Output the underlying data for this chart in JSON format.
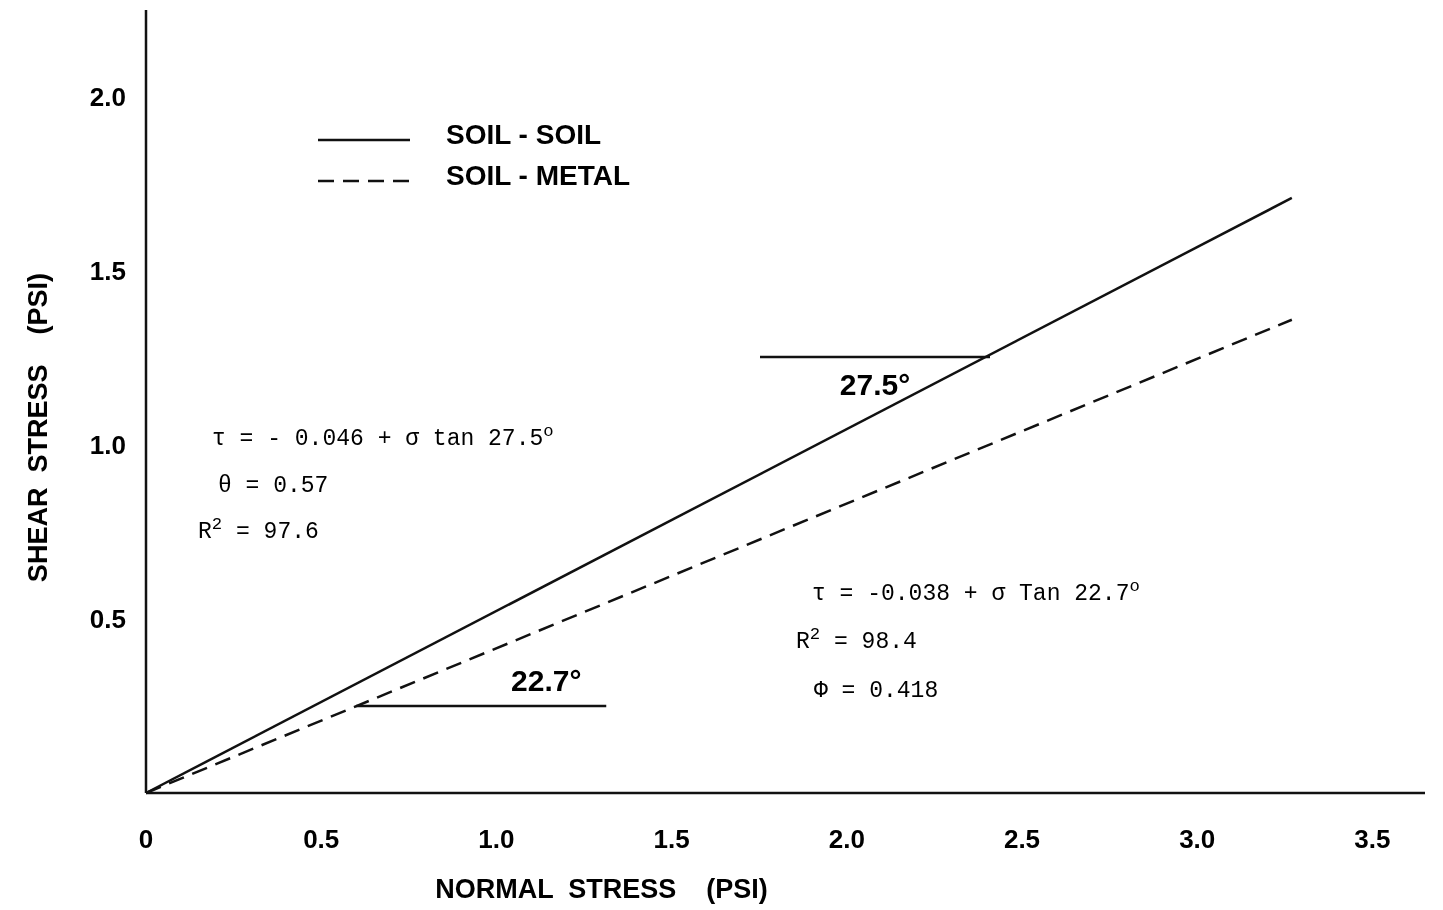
{
  "chart_data": {
    "type": "line",
    "xlabel": "NORMAL  STRESS    (PSI)",
    "ylabel": "SHEAR  STRESS    (PSI)",
    "xlim": [
      0,
      3.65
    ],
    "ylim": [
      0,
      2.25
    ],
    "xticks": [
      0,
      0.5,
      {
        "value": 1,
        "label": "1.0"
      },
      1.5,
      {
        "value": 2,
        "label": "2.0"
      },
      2.5,
      {
        "value": 3,
        "label": "3.0"
      },
      3.5
    ],
    "yticks": [
      0.5,
      {
        "value": 1,
        "label": "1.0"
      },
      1.5,
      {
        "value": 2,
        "label": "2.0"
      }
    ],
    "legend": "top left",
    "x": [
      0,
      3.27
    ],
    "grid": false,
    "marker": "none",
    "series": [
      {
        "name": "SOIL - SOIL",
        "color": "#111111",
        "line_style": "solid",
        "values": [
          0,
          1.71
        ]
      },
      {
        "name": "SOIL - METAL",
        "color": "#111111",
        "line_style": "dashed",
        "values": [
          0,
          1.36
        ]
      }
    ],
    "annotations": [
      "27.5°",
      {
        "text": "22.7°",
        "x": 0.6,
        "y": 0.25
      },
      "τ = - 0.046 + σ tan 27.5$^{o}$",
      "θ = 0.57",
      "R$^{2}$ = 97.6",
      "τ = -0.038 + σ Tan 22.7$^{o}$",
      "R$^{2}$ = 98.4",
      "Φ = 0.418"
    ]
  }
}
